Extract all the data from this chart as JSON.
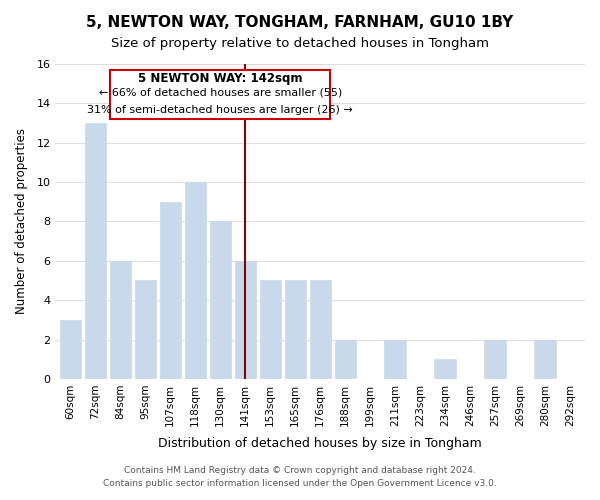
{
  "title": "5, NEWTON WAY, TONGHAM, FARNHAM, GU10 1BY",
  "subtitle": "Size of property relative to detached houses in Tongham",
  "xlabel": "Distribution of detached houses by size in Tongham",
  "ylabel": "Number of detached properties",
  "bar_labels": [
    "60sqm",
    "72sqm",
    "84sqm",
    "95sqm",
    "107sqm",
    "118sqm",
    "130sqm",
    "141sqm",
    "153sqm",
    "165sqm",
    "176sqm",
    "188sqm",
    "199sqm",
    "211sqm",
    "223sqm",
    "234sqm",
    "246sqm",
    "257sqm",
    "269sqm",
    "280sqm",
    "292sqm"
  ],
  "bar_values": [
    3,
    13,
    6,
    5,
    9,
    10,
    8,
    6,
    5,
    5,
    5,
    2,
    0,
    2,
    0,
    1,
    0,
    2,
    0,
    2,
    0
  ],
  "bar_color": "#c9d9ec",
  "highlight_bar_index": 7,
  "highlight_line_color": "#8b0000",
  "annotation_title": "5 NEWTON WAY: 142sqm",
  "annotation_line1": "← 66% of detached houses are smaller (55)",
  "annotation_line2": "31% of semi-detached houses are larger (26) →",
  "annotation_box_color": "#ffffff",
  "annotation_box_edge_color": "#cc0000",
  "ylim": [
    0,
    16
  ],
  "yticks": [
    0,
    2,
    4,
    6,
    8,
    10,
    12,
    14,
    16
  ],
  "background_color": "#ffffff",
  "grid_color": "#dddddd",
  "footer_line1": "Contains HM Land Registry data © Crown copyright and database right 2024.",
  "footer_line2": "Contains public sector information licensed under the Open Government Licence v3.0."
}
